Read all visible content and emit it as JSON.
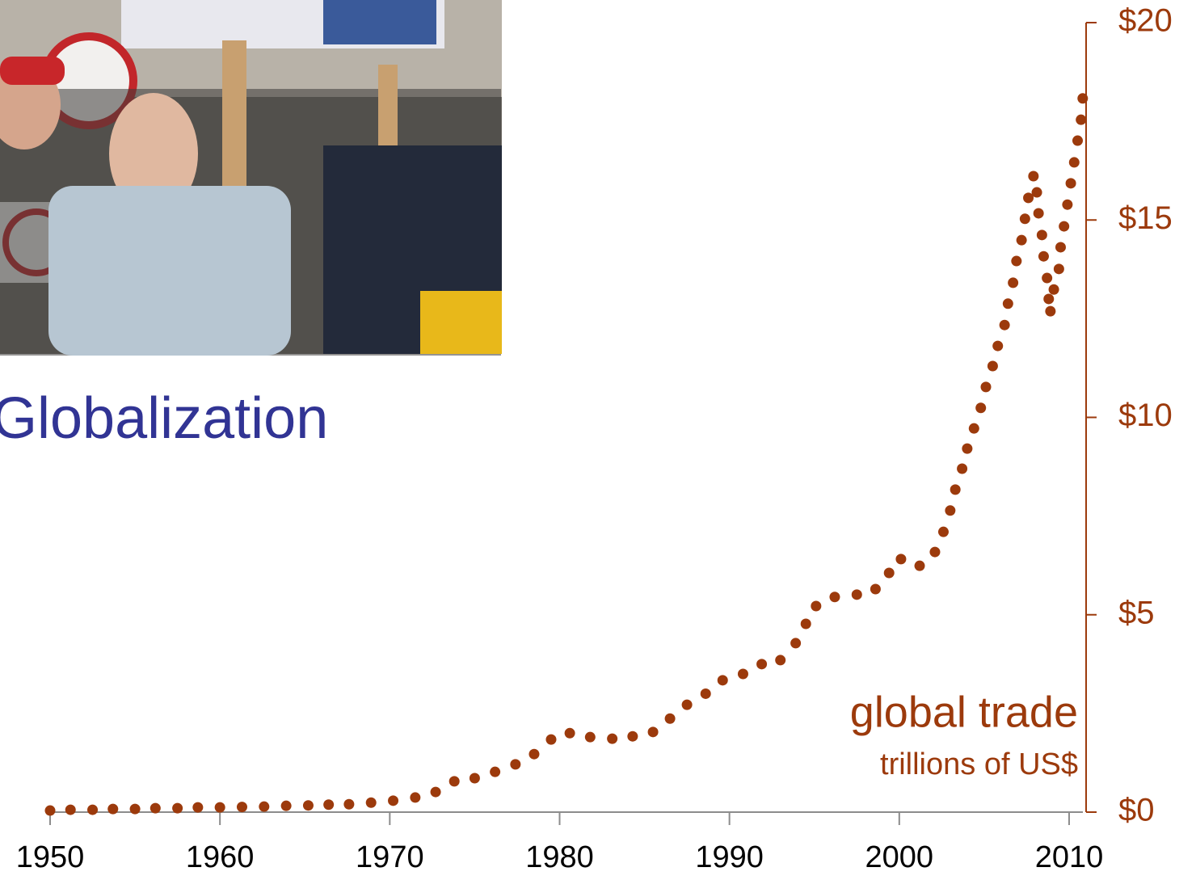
{
  "chart_data": {
    "type": "scatter",
    "title": "Globalization",
    "annotation": "global trade",
    "annotation_sub": "trillions of US$",
    "color": "#9c3a0c",
    "x": [
      1950,
      1951.2,
      1952.5,
      1953.7,
      1955,
      1956.2,
      1957.5,
      1958.7,
      1960,
      1961.3,
      1962.6,
      1963.9,
      1965.2,
      1966.4,
      1967.6,
      1968.9,
      1970.2,
      1971.5,
      1972.7,
      1973.8,
      1975,
      1976.2,
      1977.4,
      1978.5,
      1979.5,
      1980.6,
      1981.8,
      1983.1,
      1984.3,
      1985.5,
      1986.5,
      1987.5,
      1988.6,
      1989.6,
      1990.8,
      1991.9,
      1993,
      1993.9,
      1994.5,
      1995.1,
      1996.2,
      1997.5,
      1998.6,
      1999.4,
      2000.1,
      2001.2,
      2002.1,
      2002.6,
      2003,
      2003.3,
      2003.7,
      2004,
      2004.4,
      2004.8,
      2005.1,
      2005.5,
      2005.8,
      2006.2,
      2006.4,
      2006.7,
      2006.9,
      2007.2,
      2007.4,
      2007.6,
      2007.9,
      2008.1,
      2008.2,
      2008.4,
      2008.5,
      2008.7,
      2008.8,
      2008.9,
      2009.1,
      2009.4,
      2009.5,
      2009.7,
      2009.9,
      2010.1,
      2010.3,
      2010.5,
      2010.7,
      2010.8
    ],
    "values": [
      0.04,
      0.06,
      0.06,
      0.08,
      0.08,
      0.1,
      0.1,
      0.12,
      0.12,
      0.13,
      0.14,
      0.16,
      0.17,
      0.19,
      0.2,
      0.24,
      0.29,
      0.37,
      0.51,
      0.78,
      0.86,
      1.02,
      1.21,
      1.47,
      1.84,
      2.0,
      1.9,
      1.86,
      1.92,
      2.03,
      2.37,
      2.72,
      3.0,
      3.34,
      3.5,
      3.75,
      3.85,
      4.28,
      4.77,
      5.22,
      5.45,
      5.51,
      5.65,
      6.06,
      6.41,
      6.24,
      6.59,
      7.1,
      7.64,
      8.17,
      8.7,
      9.21,
      9.72,
      10.24,
      10.77,
      11.3,
      11.81,
      12.34,
      12.88,
      13.41,
      13.96,
      14.49,
      15.03,
      15.56,
      16.11,
      15.7,
      15.17,
      14.62,
      14.08,
      13.53,
      13.0,
      12.69,
      13.24,
      13.76,
      14.31,
      14.84,
      15.39,
      15.93,
      16.46,
      17.01,
      17.54,
      18.08
    ],
    "xlim": [
      1950,
      2011
    ],
    "xticks": [
      1950,
      1960,
      1970,
      1980,
      1990,
      2000,
      2010
    ],
    "ylim": [
      0,
      20
    ],
    "yticks": [
      {
        "value": 0,
        "label": "$0"
      },
      {
        "value": 5,
        "label": "$5"
      },
      {
        "value": 10,
        "label": "$10"
      },
      {
        "value": 15,
        "label": "$15"
      },
      {
        "value": 20,
        "label": "$20"
      }
    ],
    "y_axis_side": "right"
  }
}
